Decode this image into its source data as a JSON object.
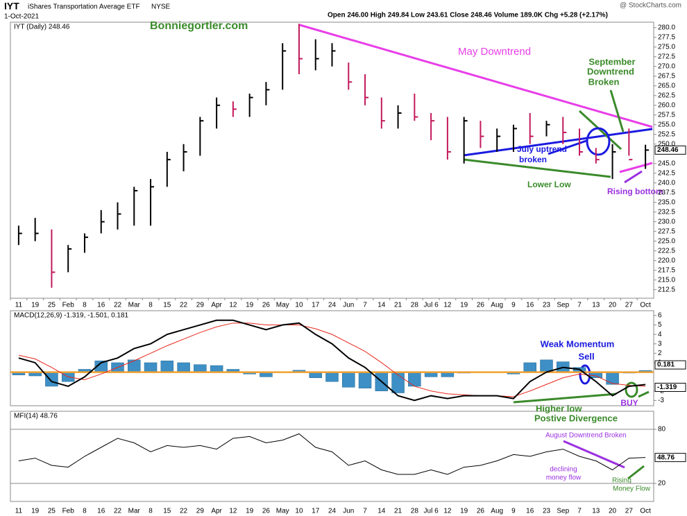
{
  "header": {
    "symbol": "IYT",
    "name": "iShares Transportation Average ETF",
    "exchange": "NYSE",
    "date": "1-Oct-2021",
    "source": "@ StockCharts.com",
    "quote": "Open 246.00  High 249.84  Low 243.61  Close 248.46  Volume 189.0K  Chg +5.28 (+2.17%)"
  },
  "chart_data": [
    {
      "type": "ohlc",
      "legend": "IYT (Daily) 248.46",
      "categories": [
        "11",
        "19",
        "25",
        "Feb",
        "8",
        "16",
        "22",
        "Mar",
        "8",
        "15",
        "22",
        "29",
        "Apr",
        "12",
        "19",
        "26",
        "May",
        "10",
        "17",
        "24",
        "Jun",
        "7",
        "14",
        "21",
        "28",
        "Jul 6",
        "12",
        "19",
        "26",
        "Aug",
        "9",
        "16",
        "23",
        "Sep",
        "7",
        "13",
        "20",
        "27",
        "Oct"
      ],
      "high": [
        229,
        231,
        228,
        224,
        227,
        233,
        235,
        239,
        241,
        248,
        250,
        257,
        262,
        261,
        263,
        266,
        276,
        281,
        277,
        276,
        271,
        268,
        262,
        260,
        263,
        258,
        257,
        257,
        256,
        254,
        255,
        258,
        256,
        257,
        254,
        249,
        250,
        254,
        249.84
      ],
      "low": [
        224,
        225,
        213,
        217,
        222,
        227,
        228,
        229,
        229,
        239,
        243,
        247,
        254,
        257,
        257,
        260,
        264,
        268,
        269,
        270,
        264,
        260,
        254,
        254,
        256,
        251,
        246,
        245,
        249,
        248,
        248,
        250,
        252,
        250,
        247,
        245,
        241,
        247,
        243.61
      ],
      "close": [
        227,
        227,
        217,
        223,
        226,
        230,
        232,
        238,
        239,
        246,
        248,
        256,
        260,
        259,
        262,
        264,
        274,
        272,
        272,
        274,
        266,
        262,
        256,
        258,
        257,
        256,
        248,
        256,
        252,
        252,
        254,
        252,
        255,
        253,
        248,
        246,
        248,
        246,
        248.46
      ],
      "up_color": "#000000",
      "down_color": "#c2185b",
      "ylim": [
        210.3,
        281.4
      ],
      "yticks": [
        212.5,
        {
          "value": 215,
          "label": "215.0"
        },
        217.5,
        {
          "value": 220,
          "label": "220.0"
        },
        222.5,
        {
          "value": 225,
          "label": "225.0"
        },
        227.5,
        {
          "value": 230,
          "label": "230.0"
        },
        232.5,
        {
          "value": 235,
          "label": "235.0"
        },
        237.5,
        {
          "value": 240,
          "label": "240.0"
        },
        242.5,
        {
          "value": 245,
          "label": "245.0"
        },
        {
          "value": 250,
          "label": "250.0"
        },
        252.5,
        {
          "value": 255,
          "label": "255.0"
        },
        257.5,
        {
          "value": 260,
          "label": "260.0"
        },
        262.5,
        {
          "value": 265,
          "label": "265.0"
        },
        267.5,
        {
          "value": 270,
          "label": "270.0"
        },
        272.5,
        {
          "value": 275,
          "label": "275.0"
        },
        277.5,
        {
          "value": 280,
          "label": "280.0"
        }
      ],
      "annotations": {
        "site": "Bonniegortler.com",
        "may": "May Downtrend",
        "sep1": "September",
        "sep2": "Downtrend",
        "sep3": "Broken",
        "july1": "July uptrend",
        "july2": "broken",
        "lower": "Lower Low",
        "rising": "Rising bottom"
      }
    },
    {
      "type": "macd",
      "legend": "MACD(12,26,9) -1.319, -1.501, 0.181",
      "macd": {
        "color": "#000000",
        "values": [
          1.5,
          1.0,
          -1.0,
          -1.5,
          -0.5,
          1,
          1.5,
          2.5,
          3,
          4,
          4.5,
          5,
          5.5,
          5.5,
          5,
          4.5,
          5,
          5.2,
          4,
          3,
          1.5,
          0.5,
          -1,
          -2.5,
          -3,
          -2.5,
          -2.8,
          -2.5,
          -2.5,
          -2.5,
          -2.8,
          -1,
          0,
          0.5,
          0.3,
          -1,
          -2.5,
          -1.5,
          -1.319
        ]
      },
      "signal": {
        "color": "#e8261c",
        "values": [
          1.8,
          1.4,
          0.5,
          -0.5,
          -0.8,
          -0.2,
          0.5,
          1.2,
          2,
          2.8,
          3.5,
          4.2,
          4.8,
          5.2,
          5.2,
          5,
          5,
          5,
          4.6,
          4,
          3.1,
          2.2,
          1,
          -0.3,
          -1.5,
          -2,
          -2.3,
          -2.4,
          -2.5,
          -2.5,
          -2.6,
          -2,
          -1.3,
          -0.6,
          -0.2,
          -0.4,
          -1.2,
          -1.4,
          -1.501
        ]
      },
      "histogram": {
        "color": "#3d8fc5",
        "values": [
          -0.3,
          -0.4,
          -1.5,
          -1,
          0.3,
          1.2,
          1,
          1.3,
          1,
          1.2,
          1,
          0.8,
          0.7,
          0.3,
          -0.2,
          -0.5,
          0,
          0.2,
          -0.6,
          -1,
          -1.6,
          -1.7,
          -2,
          -2.2,
          -1.5,
          -0.5,
          -0.5,
          -0.1,
          0,
          0,
          -0.2,
          1,
          1.3,
          1.1,
          0.5,
          -0.6,
          -1.3,
          -0.1,
          0.181
        ]
      },
      "zero_color": "#f0a030",
      "ylim": [
        -3.56,
        6.51
      ],
      "yticks": [
        6,
        5,
        4,
        3,
        2,
        1,
        -2,
        -3
      ],
      "annotations": {
        "weak1": "Weak Momentum",
        "weak2": "Sell",
        "buy": "BUY",
        "higher1": "Higher low",
        "higher2": "Postive Divergence"
      }
    },
    {
      "type": "line",
      "legend": "MFI(14) 48.76",
      "color": "#000000",
      "values": [
        45,
        48,
        40,
        38,
        50,
        60,
        70,
        65,
        55,
        62,
        60,
        62,
        58,
        70,
        72,
        65,
        68,
        75,
        60,
        55,
        40,
        45,
        35,
        30,
        30,
        35,
        30,
        38,
        40,
        45,
        52,
        50,
        55,
        58,
        50,
        45,
        35,
        48,
        48.76
      ],
      "ylim": [
        0,
        100
      ],
      "yticks": [
        80,
        20
      ],
      "annotations": {
        "aug": "August Downtrend Broken",
        "decl1": "declining",
        "decl2": "money flow",
        "rise1": "Rising",
        "rise2": "Money Flow"
      }
    }
  ]
}
